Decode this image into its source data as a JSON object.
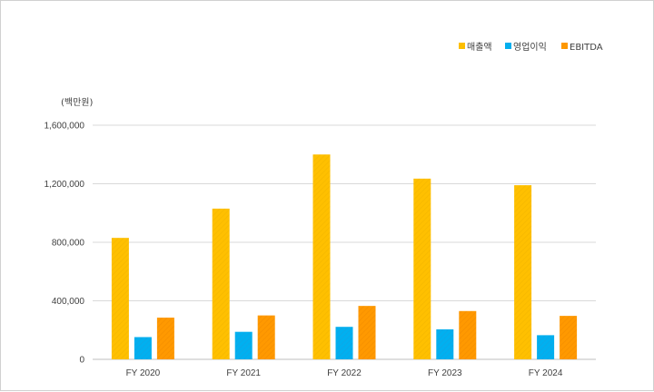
{
  "chart_data": {
    "type": "bar",
    "unit_label": "(백만원)",
    "categories": [
      "FY 2020",
      "FY 2021",
      "FY 2022",
      "FY 2023",
      "FY 2024"
    ],
    "series": [
      {
        "name": "매출액",
        "color": "#FFC000",
        "values": [
          830000,
          1030000,
          1400000,
          1235000,
          1190000
        ]
      },
      {
        "name": "영업이익",
        "color": "#00B0F0",
        "values": [
          152000,
          188000,
          222000,
          205000,
          165000
        ]
      },
      {
        "name": "EBITDA",
        "color": "#FF9900",
        "values": [
          285000,
          300000,
          365000,
          330000,
          297000
        ]
      }
    ],
    "ylim": [
      0,
      1600000
    ],
    "yticks": [
      0,
      400000,
      800000,
      1200000,
      1600000
    ],
    "ytick_labels": [
      "0",
      "400,000",
      "800,000",
      "1,200,000",
      "1,600,000"
    ],
    "grid": true,
    "legend_position": "top-right"
  }
}
